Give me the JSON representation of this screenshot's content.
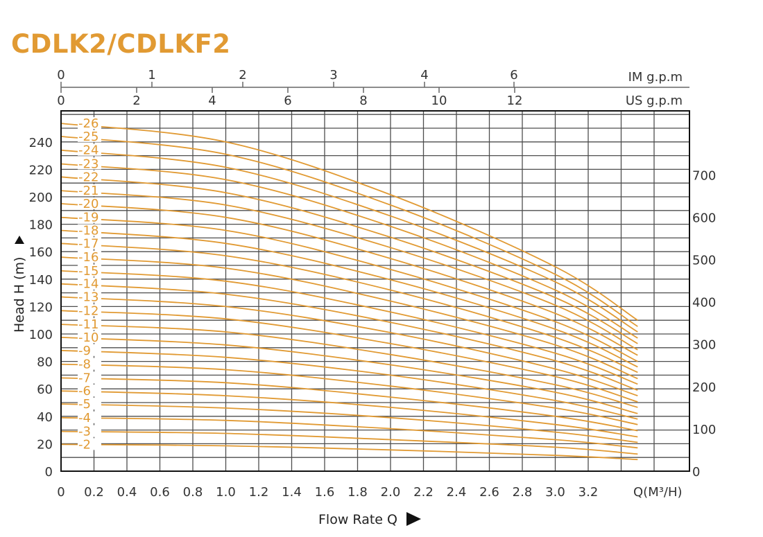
{
  "title": "CDLK2/CDLKF2",
  "chart_data": {
    "type": "line",
    "title": "CDLK2/CDLKF2",
    "xlabel": "Flow Rate Q",
    "x_unit_label": "Q(M³/H)",
    "ylabel": "Head H (m)",
    "xlim": [
      0,
      3.4
    ],
    "ylim": [
      0,
      260
    ],
    "x_ticks": [
      "0",
      "0.2",
      "0.4",
      "0.6",
      "0.8",
      "1.0",
      "1.2",
      "1.4",
      "1.6",
      "1.8",
      "2.0",
      "2.2",
      "2.4",
      "2.6",
      "2.8",
      "3.0",
      "3.2"
    ],
    "y_ticks": [
      "0",
      "20",
      "40",
      "60",
      "80",
      "100",
      "120",
      "140",
      "160",
      "180",
      "200",
      "220",
      "240"
    ],
    "y_right_ticks": [
      "0",
      "100",
      "200",
      "300",
      "400",
      "500",
      "600",
      "700"
    ],
    "im_gpm_label": "IM g.p.m",
    "im_gpm_ticks": [
      "0",
      "1",
      "2",
      "3",
      "4",
      "6"
    ],
    "us_gpm_label": "US g.p.m",
    "us_gpm_ticks": [
      "0",
      "2",
      "4",
      "6",
      "8",
      "10",
      "12"
    ],
    "grid": true,
    "curve_color": "#e19a33",
    "x": [
      0,
      1.0,
      2.0,
      3.0,
      3.5
    ],
    "series": [
      {
        "name": "-2",
        "values": [
          19.5,
          18.5,
          15.5,
          11.5,
          8.5
        ]
      },
      {
        "name": "-3",
        "values": [
          29,
          27.5,
          23,
          17.5,
          12.5
        ]
      },
      {
        "name": "-4",
        "values": [
          39,
          37,
          31,
          23,
          17
        ]
      },
      {
        "name": "-5",
        "values": [
          49,
          46,
          39,
          28.5,
          21
        ]
      },
      {
        "name": "-6",
        "values": [
          58.5,
          55,
          46.5,
          34,
          25
        ]
      },
      {
        "name": "-7",
        "values": [
          68,
          64.5,
          54,
          40,
          29.5
        ]
      },
      {
        "name": "-8",
        "values": [
          78,
          74,
          62,
          46,
          34
        ]
      },
      {
        "name": "-9",
        "values": [
          88,
          83,
          70,
          51.5,
          38
        ]
      },
      {
        "name": "-10",
        "values": [
          97.5,
          92,
          77.5,
          57.5,
          42
        ]
      },
      {
        "name": "-11",
        "values": [
          107,
          101.5,
          85,
          63,
          46.5
        ]
      },
      {
        "name": "-12",
        "values": [
          117,
          111,
          93,
          69,
          50.5
        ]
      },
      {
        "name": "-13",
        "values": [
          127,
          120,
          101,
          74.5,
          55
        ]
      },
      {
        "name": "-14",
        "values": [
          136.5,
          129,
          108.5,
          80.5,
          59
        ]
      },
      {
        "name": "-15",
        "values": [
          146,
          138.5,
          116,
          86,
          63.5
        ]
      },
      {
        "name": "-16",
        "values": [
          156,
          148,
          124,
          92,
          67.5
        ]
      },
      {
        "name": "-17",
        "values": [
          166,
          157,
          132,
          97.5,
          72
        ]
      },
      {
        "name": "-18",
        "values": [
          175.5,
          166,
          139.5,
          103.5,
          76
        ]
      },
      {
        "name": "-19",
        "values": [
          185,
          175.5,
          147,
          109,
          80
        ]
      },
      {
        "name": "-20",
        "values": [
          195,
          185,
          155,
          115,
          84.5
        ]
      },
      {
        "name": "-21",
        "values": [
          204.5,
          194,
          163,
          121,
          88.5
        ]
      },
      {
        "name": "-22",
        "values": [
          214.5,
          203,
          170.5,
          126.5,
          93
        ]
      },
      {
        "name": "-23",
        "values": [
          224,
          212.5,
          178.5,
          132,
          97
        ]
      },
      {
        "name": "-24",
        "values": [
          234,
          221.5,
          186,
          138,
          101.5
        ]
      },
      {
        "name": "-25",
        "values": [
          244,
          231,
          194,
          143.5,
          105.5
        ]
      },
      {
        "name": "-26",
        "values": [
          253.5,
          240,
          201.5,
          149,
          110
        ]
      }
    ]
  }
}
